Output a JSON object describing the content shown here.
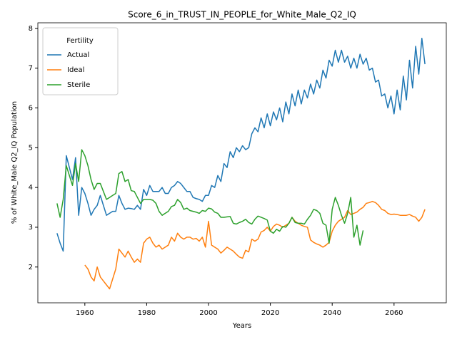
{
  "chart_data": {
    "type": "line",
    "title": "Score_6_in_TRUST_IN_PEOPLE_for_White_Male_Q2_IQ",
    "xlabel": "Years",
    "ylabel": "% of White_Male Q2_IQ Population",
    "legend_title": "Fertility",
    "legend": "upper left",
    "grid": false,
    "xlim": [
      1944.8,
      2076.9
    ],
    "ylim": [
      1.1,
      8.14
    ],
    "xticks": [
      1960,
      1980,
      2000,
      2020,
      2040,
      2060
    ],
    "yticks": [
      2,
      3,
      4,
      5,
      6,
      7,
      8
    ],
    "x": [
      1951,
      1952,
      1953,
      1954,
      1955,
      1956,
      1957,
      1958,
      1959,
      1960,
      1961,
      1962,
      1963,
      1964,
      1965,
      1966,
      1967,
      1968,
      1969,
      1970,
      1971,
      1972,
      1973,
      1974,
      1975,
      1976,
      1977,
      1978,
      1979,
      1980,
      1981,
      1982,
      1983,
      1984,
      1985,
      1986,
      1987,
      1988,
      1989,
      1990,
      1991,
      1992,
      1993,
      1994,
      1995,
      1996,
      1997,
      1998,
      1999,
      2000,
      2001,
      2002,
      2003,
      2004,
      2005,
      2006,
      2007,
      2008,
      2009,
      2010,
      2011,
      2012,
      2013,
      2014,
      2015,
      2016,
      2017,
      2018,
      2019,
      2020,
      2021,
      2022,
      2023,
      2024,
      2025,
      2026,
      2027,
      2028,
      2029,
      2030,
      2031,
      2032,
      2033,
      2034,
      2035,
      2036,
      2037,
      2038,
      2039,
      2040,
      2041,
      2042,
      2043,
      2044,
      2045,
      2046,
      2047,
      2048,
      2049,
      2050,
      2051,
      2052,
      2053,
      2054,
      2055,
      2056,
      2057,
      2058,
      2059,
      2060,
      2061,
      2062,
      2063,
      2064,
      2065,
      2066,
      2067,
      2068,
      2069,
      2070
    ],
    "series": [
      {
        "name": "Actual",
        "color": "#1f77b4",
        "values": [
          2.85,
          2.6,
          2.4,
          4.8,
          4.5,
          4.2,
          4.75,
          3.3,
          4.0,
          3.85,
          3.6,
          3.3,
          3.45,
          3.55,
          3.8,
          3.55,
          3.3,
          3.35,
          3.4,
          3.4,
          3.8,
          3.6,
          3.45,
          3.48,
          3.47,
          3.45,
          3.55,
          3.45,
          3.95,
          3.8,
          4.05,
          3.9,
          3.9,
          3.9,
          4.0,
          3.85,
          3.85,
          4.0,
          4.05,
          4.15,
          4.1,
          4.0,
          3.9,
          3.9,
          3.75,
          3.72,
          3.7,
          3.65,
          3.8,
          3.8,
          4.05,
          4.0,
          4.3,
          4.15,
          4.6,
          4.5,
          4.9,
          4.75,
          5.0,
          4.9,
          5.05,
          4.95,
          5.0,
          5.35,
          5.5,
          5.4,
          5.75,
          5.5,
          5.85,
          5.55,
          5.9,
          5.7,
          6.0,
          5.65,
          6.15,
          5.85,
          6.35,
          6.05,
          6.45,
          6.1,
          6.45,
          6.25,
          6.6,
          6.35,
          6.7,
          6.5,
          6.95,
          6.75,
          7.2,
          7.05,
          7.45,
          7.15,
          7.45,
          7.15,
          7.3,
          7.0,
          7.25,
          7.0,
          7.35,
          7.1,
          7.25,
          6.95,
          7.0,
          6.65,
          6.7,
          6.3,
          6.35,
          6.0,
          6.3,
          5.85,
          6.45,
          5.95,
          6.8,
          6.2,
          7.2,
          6.5,
          7.55,
          6.85,
          7.75,
          7.1
        ]
      },
      {
        "name": "Ideal",
        "color": "#ff7f0e",
        "values": [
          null,
          null,
          null,
          null,
          null,
          null,
          null,
          null,
          null,
          2.05,
          1.95,
          1.75,
          1.65,
          2.0,
          1.75,
          1.65,
          1.55,
          1.45,
          1.7,
          1.95,
          2.45,
          2.35,
          2.25,
          2.4,
          2.25,
          2.12,
          2.2,
          2.12,
          2.6,
          2.7,
          2.75,
          2.6,
          2.5,
          2.55,
          2.45,
          2.5,
          2.55,
          2.75,
          2.65,
          2.85,
          2.75,
          2.7,
          2.75,
          2.75,
          2.7,
          2.72,
          2.65,
          2.75,
          2.5,
          3.15,
          2.55,
          2.5,
          2.45,
          2.35,
          2.42,
          2.5,
          2.45,
          2.4,
          2.32,
          2.25,
          2.22,
          2.42,
          2.38,
          2.7,
          2.65,
          2.7,
          2.88,
          2.92,
          3.0,
          2.9,
          3.02,
          3.08,
          3.05,
          3.0,
          3.05,
          3.1,
          3.25,
          3.15,
          3.1,
          3.05,
          3.02,
          3.0,
          2.68,
          2.62,
          2.58,
          2.55,
          2.5,
          2.55,
          2.62,
          2.9,
          3.05,
          3.15,
          3.2,
          3.25,
          3.42,
          3.32,
          3.35,
          3.38,
          3.45,
          3.5,
          3.6,
          3.62,
          3.65,
          3.62,
          3.55,
          3.45,
          3.42,
          3.35,
          3.32,
          3.33,
          3.32,
          3.3,
          3.3,
          3.3,
          3.32,
          3.28,
          3.25,
          3.15,
          3.25,
          3.45
        ]
      },
      {
        "name": "Sterile",
        "color": "#2ca02c",
        "values": [
          3.6,
          3.25,
          3.7,
          4.55,
          4.3,
          4.05,
          4.6,
          4.15,
          4.95,
          4.8,
          4.55,
          4.2,
          3.95,
          4.1,
          4.1,
          3.9,
          3.7,
          3.75,
          3.8,
          3.85,
          4.35,
          4.4,
          4.15,
          4.2,
          3.92,
          3.9,
          3.75,
          3.6,
          3.7,
          3.7,
          3.7,
          3.68,
          3.6,
          3.4,
          3.3,
          3.35,
          3.4,
          3.52,
          3.55,
          3.7,
          3.62,
          3.45,
          3.48,
          3.42,
          3.4,
          3.38,
          3.35,
          3.42,
          3.4,
          3.48,
          3.46,
          3.38,
          3.35,
          3.25,
          3.25,
          3.26,
          3.27,
          3.1,
          3.08,
          3.12,
          3.15,
          3.2,
          3.12,
          3.08,
          3.2,
          3.28,
          3.25,
          3.22,
          3.18,
          2.9,
          2.85,
          2.95,
          2.9,
          3.02,
          3.0,
          3.1,
          3.25,
          3.12,
          3.1,
          3.1,
          3.08,
          3.2,
          3.3,
          3.45,
          3.42,
          3.35,
          3.1,
          3.05,
          2.6,
          3.45,
          3.75,
          3.55,
          3.3,
          3.1,
          3.35,
          3.75,
          2.75,
          3.05,
          2.55,
          2.92,
          null,
          null,
          null,
          null,
          null,
          null,
          null,
          null,
          null,
          null,
          null,
          null,
          null,
          null,
          null,
          null,
          null,
          null,
          null,
          null
        ]
      }
    ]
  }
}
